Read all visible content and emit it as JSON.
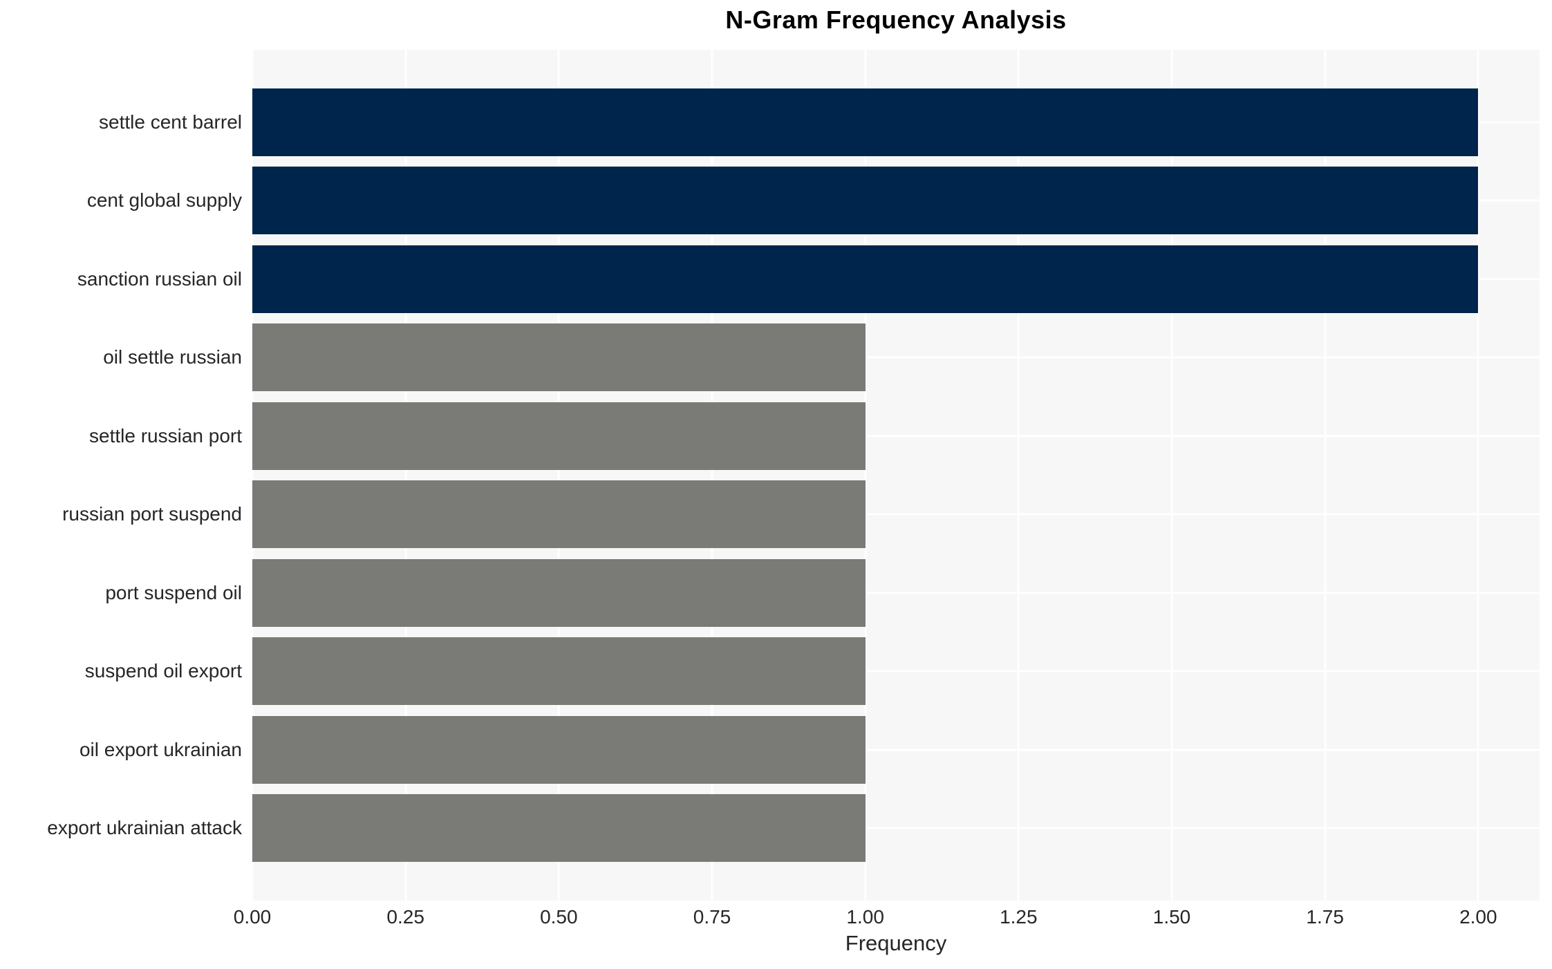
{
  "chart_data": {
    "type": "bar",
    "orientation": "horizontal",
    "title": "N-Gram Frequency Analysis",
    "xlabel": "Frequency",
    "ylabel": "",
    "categories": [
      "settle cent barrel",
      "cent global supply",
      "sanction russian oil",
      "oil settle russian",
      "settle russian port",
      "russian port suspend",
      "port suspend oil",
      "suspend oil export",
      "oil export ukrainian",
      "export ukrainian attack"
    ],
    "values": [
      2,
      2,
      2,
      1,
      1,
      1,
      1,
      1,
      1,
      1
    ],
    "bar_colors": [
      "#00254d",
      "#00254d",
      "#00254d",
      "#7a7a76",
      "#7a7a76",
      "#7a7a76",
      "#7a7a76",
      "#7a7a76",
      "#7a7a76",
      "#7a7a76"
    ],
    "highlight_color": "#00254d",
    "default_color": "#7a7a76",
    "xtick_labels": [
      "0.00",
      "0.25",
      "0.50",
      "0.75",
      "1.00",
      "1.25",
      "1.50",
      "1.75",
      "2.00"
    ],
    "xtick_values": [
      0,
      0.25,
      0.5,
      0.75,
      1.0,
      1.25,
      1.5,
      1.75,
      2.0
    ],
    "xlim": [
      0,
      2.1
    ],
    "grid": true,
    "legend": false,
    "plot_background": "#f7f7f7",
    "grid_color": "#ffffff",
    "text_color": "#262626",
    "title_color": "#000000"
  }
}
